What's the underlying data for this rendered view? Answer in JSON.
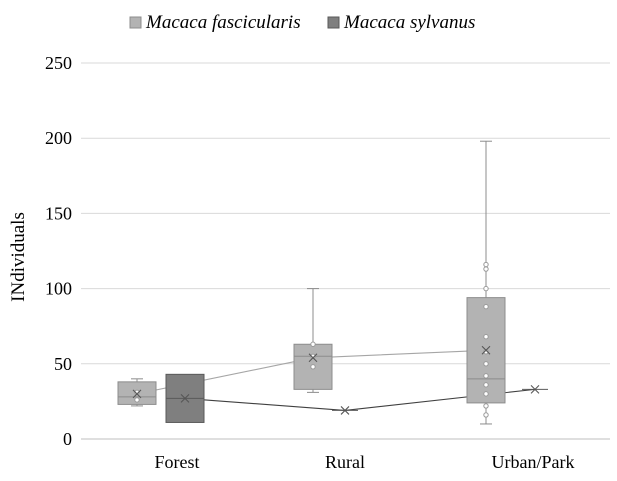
{
  "chart_data": {
    "type": "box",
    "title": "",
    "xlabel": "",
    "ylabel": "INdividuals",
    "ylim": [
      0,
      250
    ],
    "yticks": [
      0,
      50,
      100,
      150,
      200,
      250
    ],
    "grid": true,
    "legend_position": "top",
    "categories": [
      "Forest",
      "Rural",
      "Urban/Park"
    ],
    "series": [
      {
        "name": "Macaca fascicularis",
        "color": "#b3b3b3",
        "boxes": [
          {
            "category": "Forest",
            "min": 22,
            "q1": 23,
            "median": 28,
            "q3": 38,
            "max": 40,
            "mean": 30,
            "points": [
              26,
              31
            ]
          },
          {
            "category": "Rural",
            "min": 31,
            "q1": 33,
            "median": 55,
            "q3": 63,
            "max": 100,
            "mean": 54,
            "points": [
              48,
              55,
              63
            ]
          },
          {
            "category": "Urban/Park",
            "min": 10,
            "q1": 24,
            "median": 40,
            "q3": 94,
            "max": 198,
            "mean": 59,
            "points": [
              16,
              22,
              30,
              36,
              42,
              50,
              58,
              68,
              88,
              100,
              113,
              116
            ]
          }
        ]
      },
      {
        "name": "Macaca sylvanus",
        "color": "#7f7f7f",
        "boxes": [
          {
            "category": "Forest",
            "min": 11,
            "q1": 11,
            "median": 27,
            "q3": 43,
            "max": 43,
            "mean": 27,
            "points": []
          },
          {
            "category": "Rural",
            "min": 19,
            "q1": 19,
            "median": 19,
            "q3": 19,
            "max": 19,
            "mean": 19,
            "points": []
          },
          {
            "category": "Urban/Park",
            "min": 33,
            "q1": 33,
            "median": 33,
            "q3": 33,
            "max": 33,
            "mean": 33,
            "points": []
          }
        ]
      }
    ]
  }
}
